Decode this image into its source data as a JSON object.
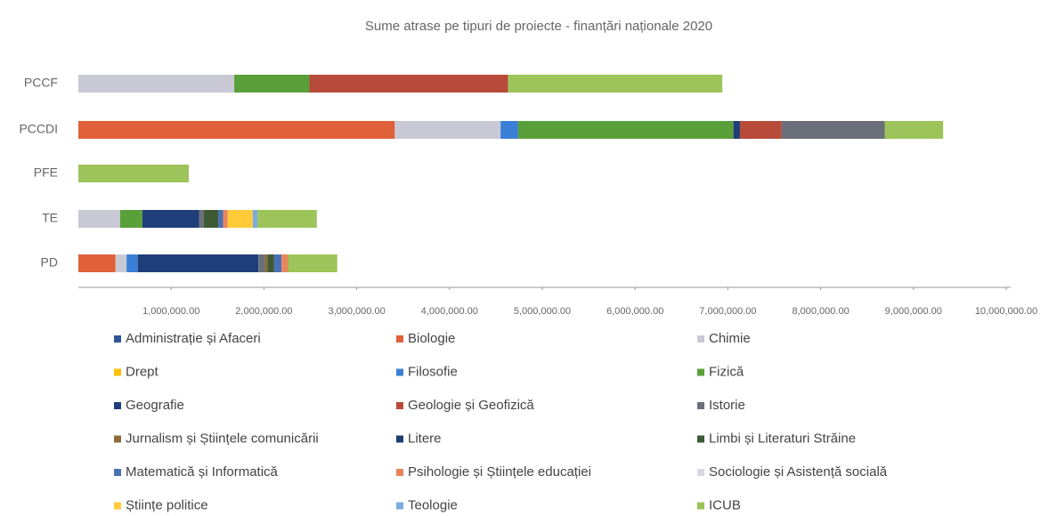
{
  "chart_data": {
    "type": "stacked-barh",
    "title": "Sume atrase pe tipuri de proiecte - finanțări naționale 2020",
    "categories": [
      "PCCF",
      "PCCDI",
      "PFE",
      "TE",
      "PD"
    ],
    "xlim": [
      0,
      10000000
    ],
    "xticks": [
      {
        "value": 1000000,
        "label": "1,000,000.00"
      },
      {
        "value": 2000000,
        "label": "2,000,000.00"
      },
      {
        "value": 3000000,
        "label": "3,000,000.00"
      },
      {
        "value": 4000000,
        "label": "4,000,000.00"
      },
      {
        "value": 5000000,
        "label": "5,000,000.00"
      },
      {
        "value": 6000000,
        "label": "6,000,000.00"
      },
      {
        "value": 7000000,
        "label": "7,000,000.00"
      },
      {
        "value": 8000000,
        "label": "8,000,000.00"
      },
      {
        "value": 9000000,
        "label": "9,000,000.00"
      },
      {
        "value": 10000000,
        "label": "10,000,000.00"
      }
    ],
    "series": [
      {
        "name": "Administrație și Afaceri",
        "color": "#2f5597",
        "values": [
          null,
          null,
          null,
          null,
          null
        ]
      },
      {
        "name": "Biologie",
        "color": "#e0603a",
        "values": [
          null,
          3410000,
          null,
          null,
          400000
        ]
      },
      {
        "name": "Chimie",
        "color": "#c9c9d6",
        "values": [
          1680000,
          1140000,
          null,
          450000,
          120000
        ]
      },
      {
        "name": "Drept",
        "color": "#ffc000",
        "values": [
          null,
          null,
          null,
          null,
          null
        ]
      },
      {
        "name": "Filosofie",
        "color": "#3a7fd5",
        "values": [
          null,
          190000,
          null,
          null,
          120000
        ]
      },
      {
        "name": "Fizică",
        "color": "#5aa03a",
        "values": [
          810000,
          2320000,
          null,
          240000,
          null
        ]
      },
      {
        "name": "Geografie",
        "color": "#1f3e7a",
        "values": [
          null,
          70000,
          null,
          610000,
          1300000
        ]
      },
      {
        "name": "Geologie și Geofizică",
        "color": "#b84a3a",
        "values": [
          2140000,
          450000,
          null,
          null,
          null
        ]
      },
      {
        "name": "Istorie",
        "color": "#6a6f7a",
        "values": [
          null,
          1110000,
          null,
          50000,
          70000
        ]
      },
      {
        "name": "Jurnalism și Științele comunicării",
        "color": "#8c6d3a",
        "values": [
          null,
          null,
          null,
          null,
          30000
        ]
      },
      {
        "name": "Litere",
        "color": "#1b3f70",
        "values": [
          null,
          null,
          null,
          null,
          null
        ]
      },
      {
        "name": "Limbi și Literaturi Străine",
        "color": "#3d5a35",
        "values": [
          null,
          null,
          null,
          160000,
          70000
        ]
      },
      {
        "name": "Matematică și Informatică",
        "color": "#4a6fb5",
        "values": [
          null,
          null,
          null,
          50000,
          80000
        ]
      },
      {
        "name": "Psihologie și Științele educației",
        "color": "#e8855a",
        "values": [
          null,
          null,
          null,
          50000,
          70000
        ]
      },
      {
        "name": "Sociologie și Asistență socială",
        "color": "#d8d8e2",
        "values": [
          null,
          null,
          null,
          null,
          null
        ]
      },
      {
        "name": "Științe politice",
        "color": "#ffcb3a",
        "values": [
          null,
          null,
          null,
          270000,
          null
        ]
      },
      {
        "name": "Teologie",
        "color": "#7aaae0",
        "values": [
          null,
          null,
          null,
          50000,
          null
        ]
      },
      {
        "name": "ICUB",
        "color": "#9cc45a",
        "values": [
          2310000,
          630000,
          1190000,
          640000,
          530000
        ]
      }
    ]
  }
}
